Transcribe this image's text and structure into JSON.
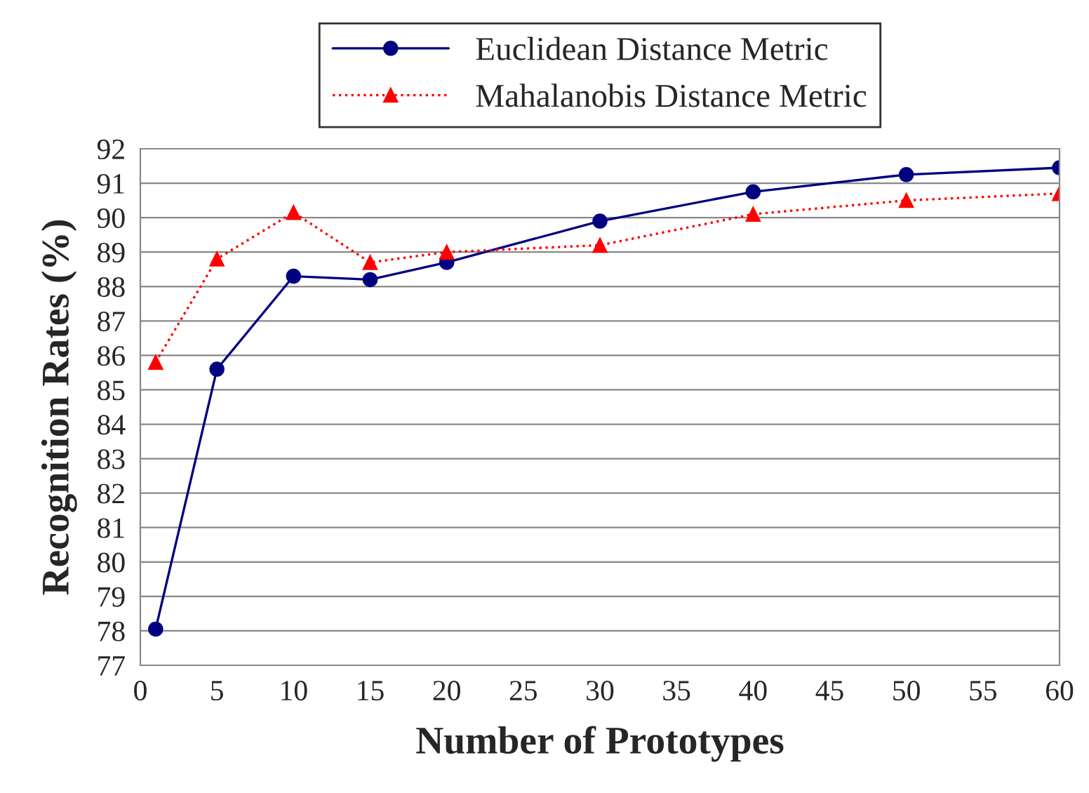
{
  "chart_data": {
    "type": "line",
    "xlabel": "Number of Prototypes",
    "ylabel": "Recognition Rates (%)",
    "xlim": [
      0,
      60
    ],
    "xticks": [
      0,
      5,
      10,
      15,
      20,
      25,
      30,
      35,
      40,
      45,
      50,
      55,
      60
    ],
    "ylim": [
      77,
      92
    ],
    "yticks": [
      77,
      78,
      79,
      80,
      81,
      82,
      83,
      84,
      85,
      86,
      87,
      88,
      89,
      90,
      91,
      92
    ],
    "grid": "y",
    "legend": "top",
    "series": [
      {
        "name": "Euclidean Distance Metric",
        "color": "#000080",
        "marker": "circle",
        "line_style": "solid",
        "x": [
          1,
          5,
          10,
          15,
          20,
          30,
          40,
          50,
          60
        ],
        "values": [
          78.05,
          85.6,
          88.3,
          88.2,
          88.7,
          89.9,
          90.75,
          91.25,
          91.45
        ]
      },
      {
        "name": "Mahalanobis Distance Metric",
        "color": "#ff0000",
        "marker": "triangle",
        "line_style": "dotted",
        "x": [
          1,
          5,
          10,
          15,
          20,
          30,
          40,
          50,
          60
        ],
        "values": [
          85.8,
          88.8,
          90.15,
          88.7,
          89.0,
          89.2,
          90.1,
          90.5,
          90.7
        ]
      }
    ]
  }
}
